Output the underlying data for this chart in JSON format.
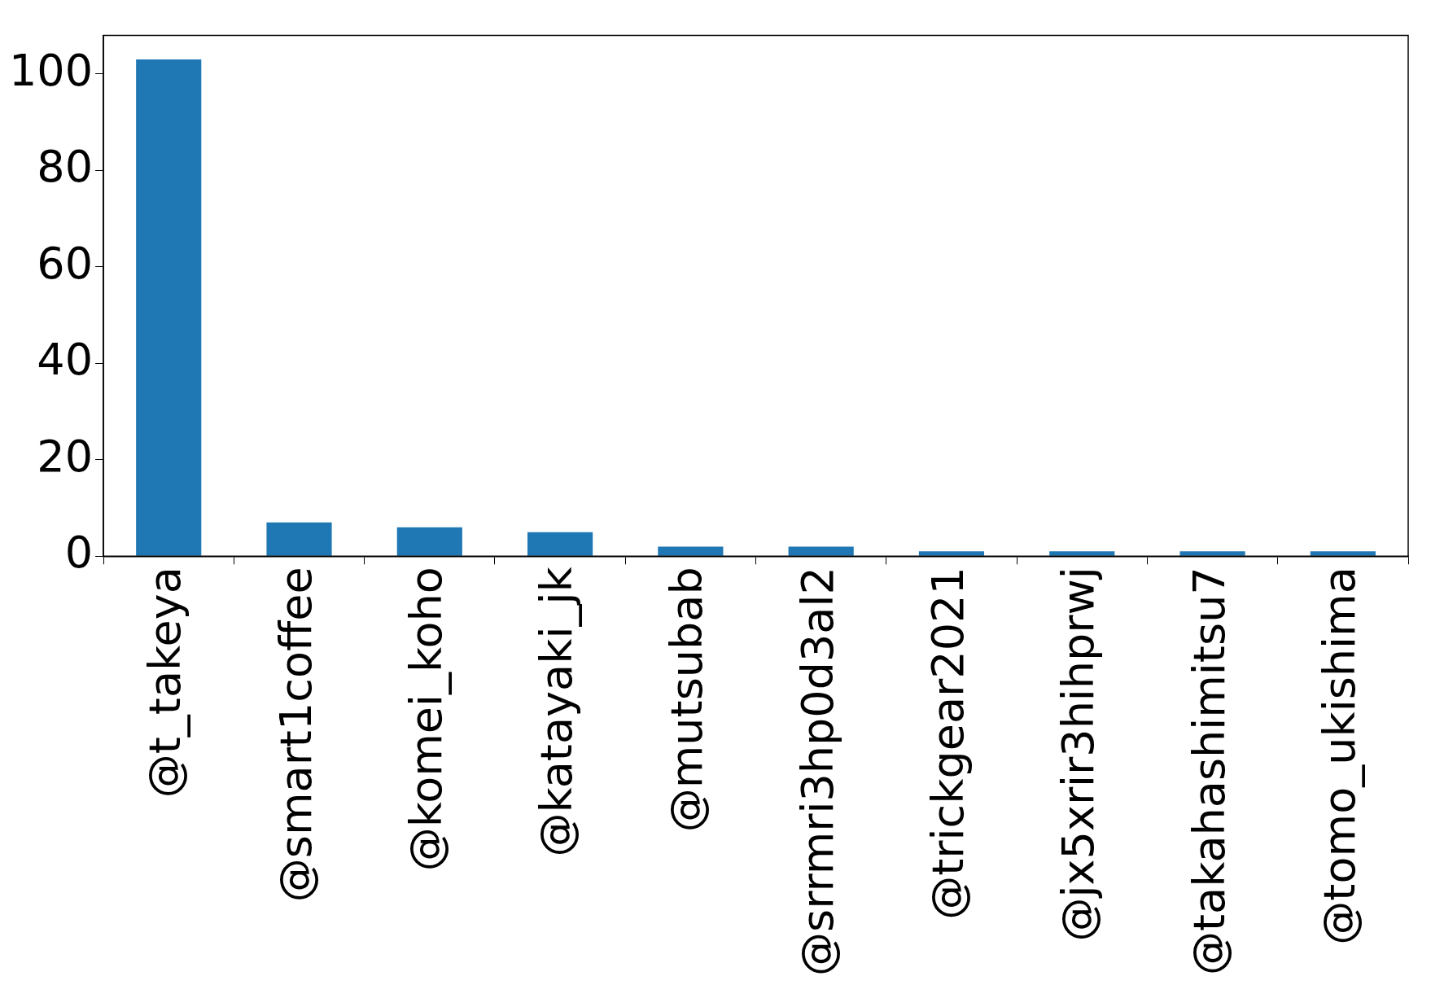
{
  "chart_data": {
    "type": "bar",
    "categories": [
      "@t_takeya",
      "@smart1coffee",
      "@komei_koho",
      "@katayaki_jk",
      "@mutsubab",
      "@srrmri3hp0d3al2",
      "@trickgear2021",
      "@jx5xrir3hihprwj",
      "@takahashimitsu7",
      "@tomo_ukishima"
    ],
    "values": [
      103,
      7,
      6,
      5,
      2,
      2,
      1,
      1,
      1,
      1
    ],
    "color": "#1f77b4",
    "ylim": [
      0,
      108
    ],
    "yticks": [
      0,
      20,
      40,
      60,
      80,
      100
    ]
  }
}
